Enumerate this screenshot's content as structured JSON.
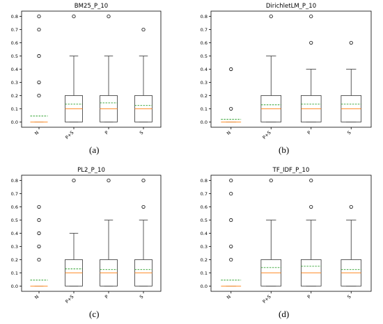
{
  "colors": {
    "box": "#333333",
    "median": "#ff7f0e",
    "mean": "#2ca02c",
    "frame": "#000000"
  },
  "chart_data": [
    {
      "type": "box",
      "title": "BM25_P_10",
      "caption": "(a)",
      "categories": [
        "N",
        "P+S",
        "P",
        "S"
      ],
      "yticks": [
        "0.0",
        "0.1",
        "0.2",
        "0.3",
        "0.4",
        "0.5",
        "0.6",
        "0.7",
        "0.8"
      ],
      "ylim": [
        -0.04,
        0.84
      ],
      "boxes": [
        {
          "q1": 0.0,
          "median": 0.0,
          "q3": 0.0,
          "whisker_low": 0.0,
          "whisker_high": 0.0,
          "mean": 0.045,
          "outliers": [
            0.2,
            0.3,
            0.5,
            0.7,
            0.8
          ]
        },
        {
          "q1": 0.0,
          "median": 0.1,
          "q3": 0.2,
          "whisker_low": 0.0,
          "whisker_high": 0.5,
          "mean": 0.135,
          "outliers": [
            0.8
          ]
        },
        {
          "q1": 0.0,
          "median": 0.1,
          "q3": 0.2,
          "whisker_low": 0.0,
          "whisker_high": 0.5,
          "mean": 0.145,
          "outliers": [
            0.8
          ]
        },
        {
          "q1": 0.0,
          "median": 0.1,
          "q3": 0.2,
          "whisker_low": 0.0,
          "whisker_high": 0.5,
          "mean": 0.125,
          "outliers": [
            0.7
          ]
        }
      ]
    },
    {
      "type": "box",
      "title": "DirichletLM_P_10",
      "caption": "(b)",
      "categories": [
        "N",
        "P+S",
        "P",
        "S"
      ],
      "yticks": [
        "0.0",
        "0.1",
        "0.2",
        "0.3",
        "0.4",
        "0.5",
        "0.6",
        "0.7",
        "0.8"
      ],
      "ylim": [
        -0.04,
        0.84
      ],
      "boxes": [
        {
          "q1": 0.0,
          "median": 0.0,
          "q3": 0.0,
          "whisker_low": 0.0,
          "whisker_high": 0.0,
          "mean": 0.02,
          "outliers": [
            0.1,
            0.4
          ]
        },
        {
          "q1": 0.0,
          "median": 0.1,
          "q3": 0.2,
          "whisker_low": 0.0,
          "whisker_high": 0.5,
          "mean": 0.13,
          "outliers": [
            0.8
          ]
        },
        {
          "q1": 0.0,
          "median": 0.1,
          "q3": 0.2,
          "whisker_low": 0.0,
          "whisker_high": 0.4,
          "mean": 0.135,
          "outliers": [
            0.6,
            0.8
          ]
        },
        {
          "q1": 0.0,
          "median": 0.1,
          "q3": 0.2,
          "whisker_low": 0.0,
          "whisker_high": 0.4,
          "mean": 0.135,
          "outliers": [
            0.6
          ]
        }
      ]
    },
    {
      "type": "box",
      "title": "PL2_P_10",
      "caption": "(c)",
      "categories": [
        "N",
        "P+S",
        "P",
        "S"
      ],
      "yticks": [
        "0.0",
        "0.1",
        "0.2",
        "0.3",
        "0.4",
        "0.5",
        "0.6",
        "0.7",
        "0.8"
      ],
      "ylim": [
        -0.04,
        0.84
      ],
      "boxes": [
        {
          "q1": 0.0,
          "median": 0.0,
          "q3": 0.0,
          "whisker_low": 0.0,
          "whisker_high": 0.0,
          "mean": 0.045,
          "outliers": [
            0.2,
            0.3,
            0.4,
            0.5,
            0.6
          ]
        },
        {
          "q1": 0.0,
          "median": 0.1,
          "q3": 0.2,
          "whisker_low": 0.0,
          "whisker_high": 0.4,
          "mean": 0.13,
          "outliers": [
            0.8
          ]
        },
        {
          "q1": 0.0,
          "median": 0.1,
          "q3": 0.2,
          "whisker_low": 0.0,
          "whisker_high": 0.5,
          "mean": 0.125,
          "outliers": [
            0.8
          ]
        },
        {
          "q1": 0.0,
          "median": 0.1,
          "q3": 0.2,
          "whisker_low": 0.0,
          "whisker_high": 0.5,
          "mean": 0.125,
          "outliers": [
            0.6,
            0.8
          ]
        }
      ]
    },
    {
      "type": "box",
      "title": "TF_IDF_P_10",
      "caption": "(d)",
      "categories": [
        "N",
        "P+S",
        "P",
        "S"
      ],
      "yticks": [
        "0.0",
        "0.1",
        "0.2",
        "0.3",
        "0.4",
        "0.5",
        "0.6",
        "0.7",
        "0.8"
      ],
      "ylim": [
        -0.04,
        0.84
      ],
      "boxes": [
        {
          "q1": 0.0,
          "median": 0.0,
          "q3": 0.0,
          "whisker_low": 0.0,
          "whisker_high": 0.0,
          "mean": 0.045,
          "outliers": [
            0.2,
            0.3,
            0.5,
            0.7,
            0.8
          ]
        },
        {
          "q1": 0.0,
          "median": 0.1,
          "q3": 0.2,
          "whisker_low": 0.0,
          "whisker_high": 0.5,
          "mean": 0.14,
          "outliers": [
            0.8
          ]
        },
        {
          "q1": 0.0,
          "median": 0.1,
          "q3": 0.2,
          "whisker_low": 0.0,
          "whisker_high": 0.5,
          "mean": 0.15,
          "outliers": [
            0.6,
            0.8
          ]
        },
        {
          "q1": 0.0,
          "median": 0.1,
          "q3": 0.2,
          "whisker_low": 0.0,
          "whisker_high": 0.5,
          "mean": 0.125,
          "outliers": [
            0.6
          ]
        }
      ]
    }
  ]
}
